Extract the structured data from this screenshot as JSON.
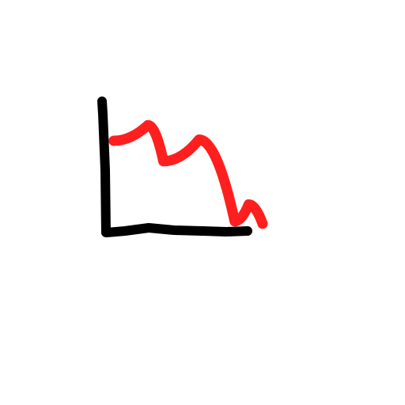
{
  "colors": {
    "background": "#ffffff",
    "axis": "#000000",
    "series": "#ff1f1f"
  },
  "chart_data": {
    "type": "line",
    "title": "",
    "xlabel": "",
    "ylabel": "",
    "grid": false,
    "legend": "none",
    "style": "hand-drawn sketch",
    "xlim": [
      0,
      10
    ],
    "ylim": [
      0,
      10
    ],
    "series": [
      {
        "x": [
          0.4,
          2.6,
          3.6,
          5.9,
          8.2,
          9.1,
          10
        ],
        "y": [
          7.5,
          8.8,
          5.8,
          7.6,
          0.8,
          2.2,
          0.6
        ]
      }
    ]
  }
}
